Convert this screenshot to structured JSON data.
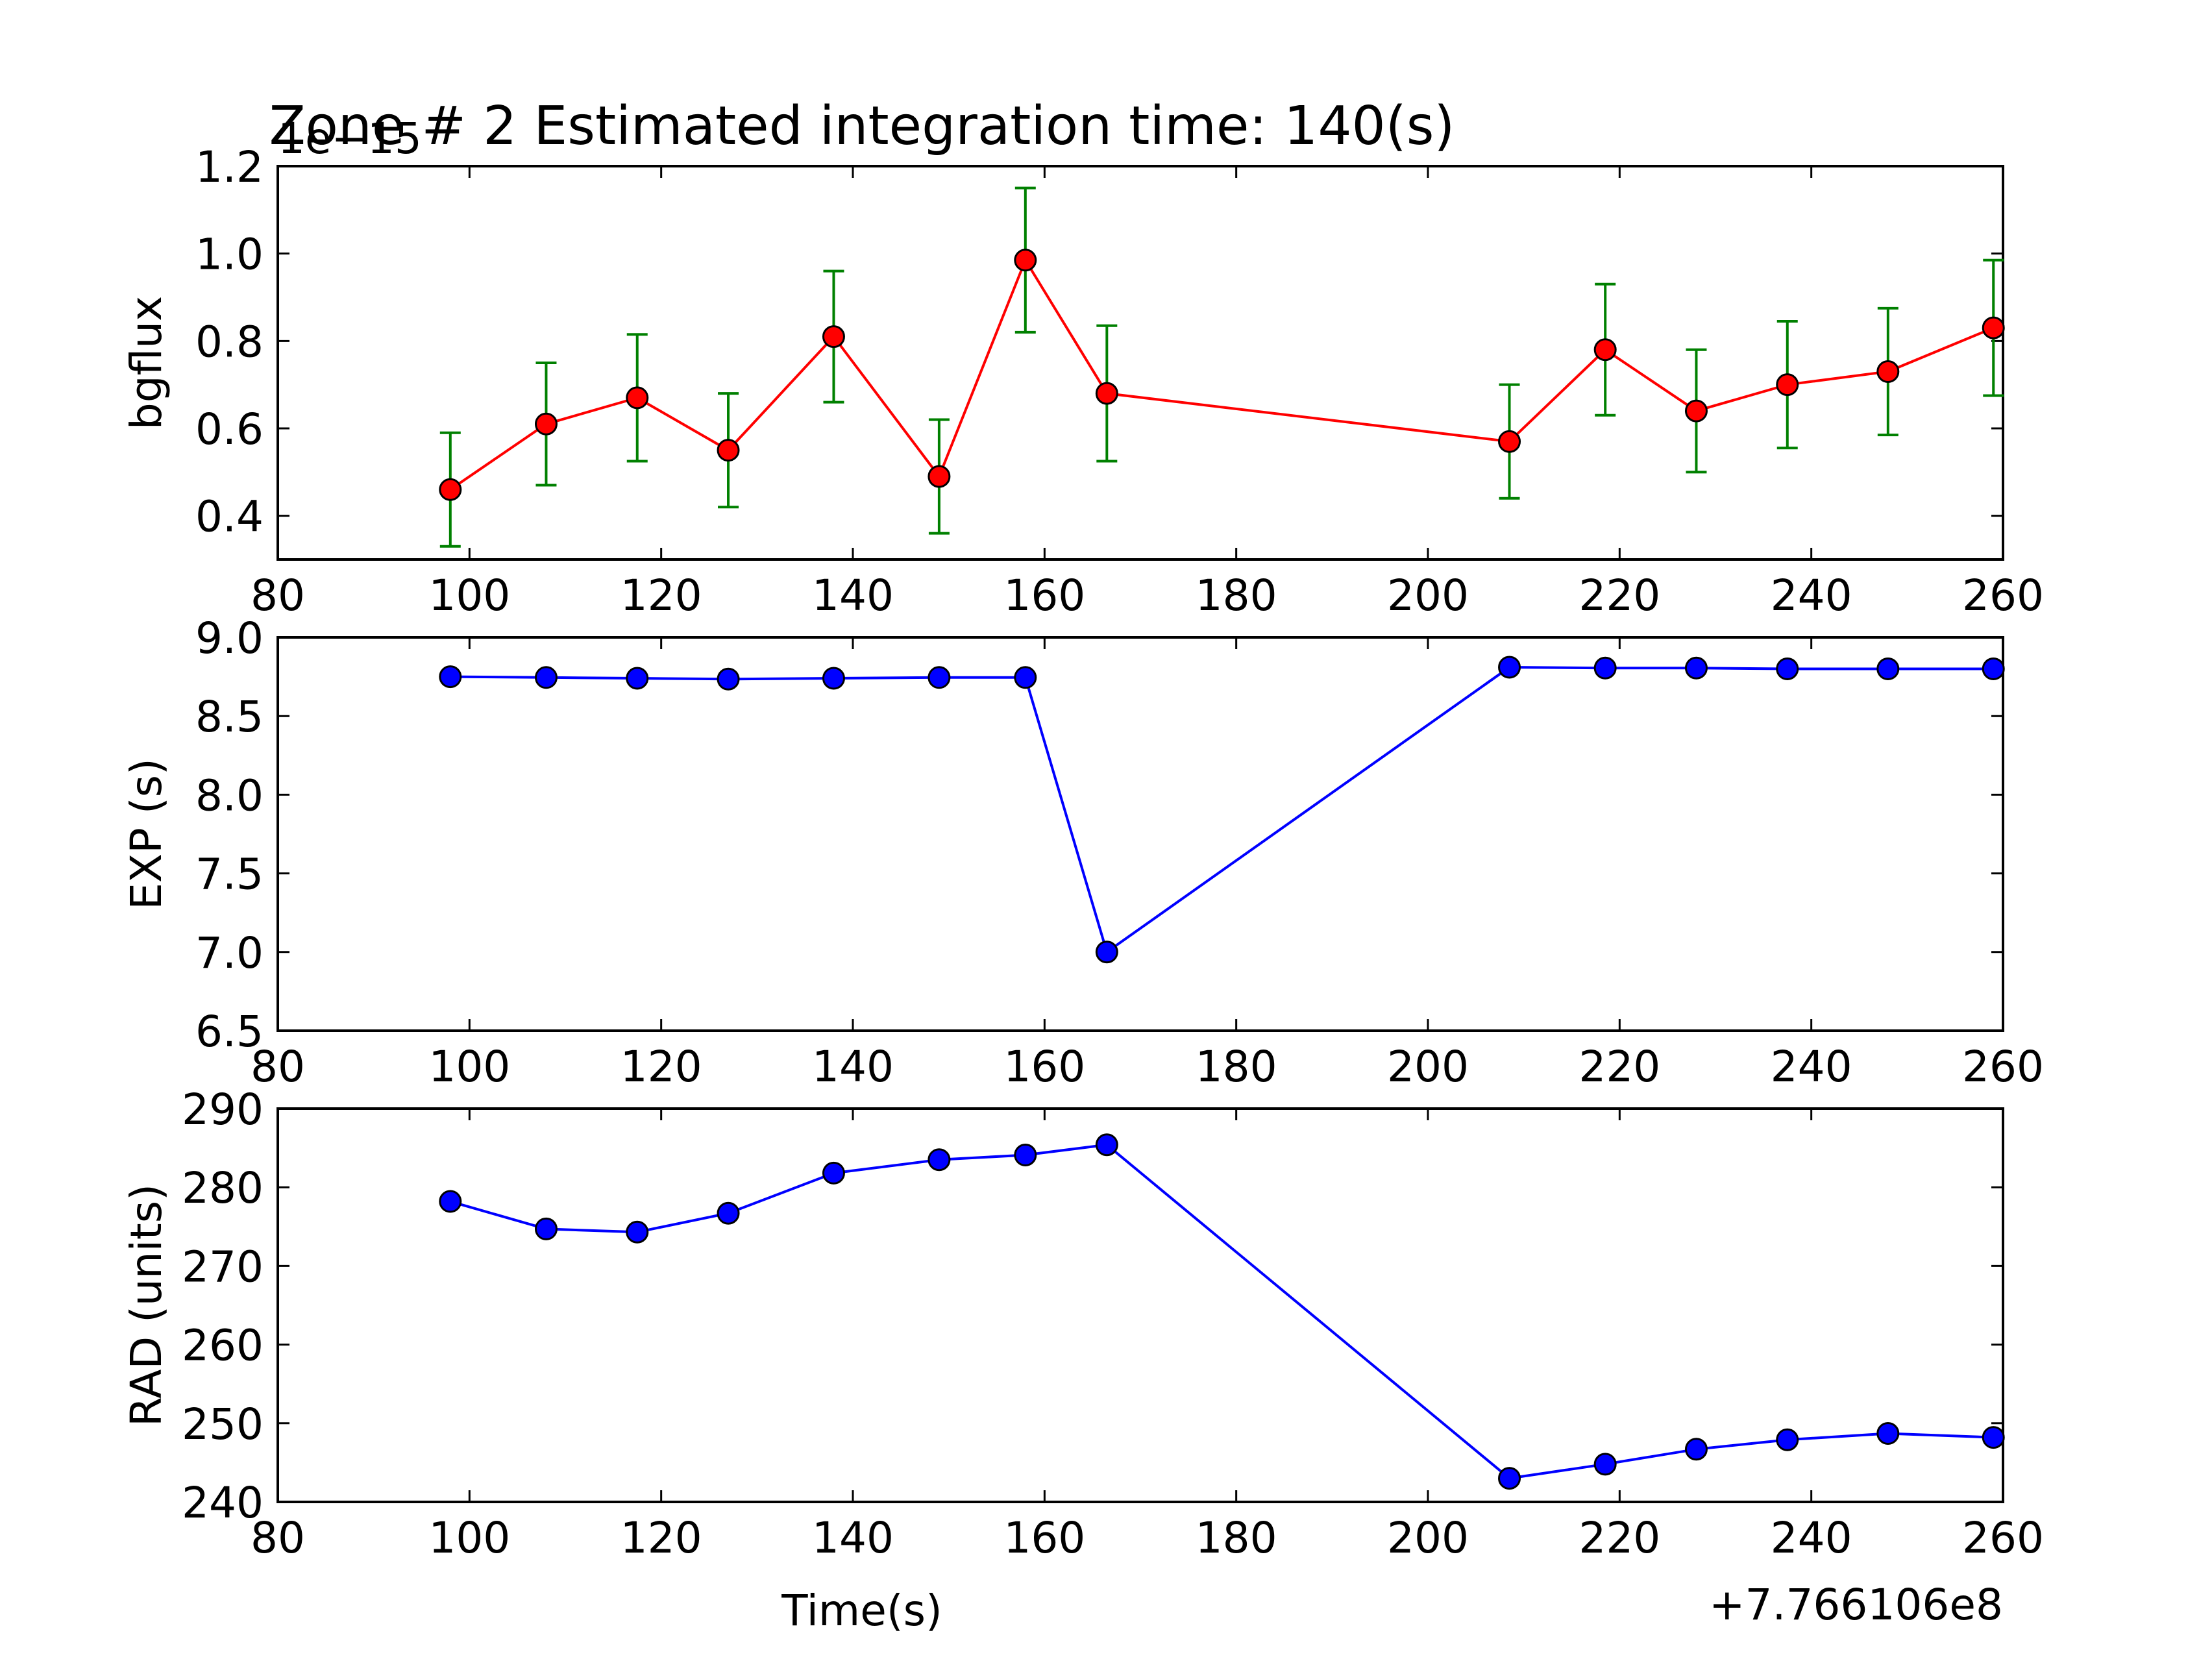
{
  "figure": {
    "title": "Zone # 2 Estimated integration time: 140(s)",
    "x_offset_label": "+7.766106e8",
    "colors": {
      "line_red": "#ff0000",
      "marker_red": "#ff0000",
      "errorbar_green": "#008000",
      "line_blue": "#0000ff",
      "marker_blue": "#0000ff"
    }
  },
  "chart_data": [
    {
      "type": "line",
      "ylabel": "bgflux",
      "y_multiplier_label": "1e−15",
      "xlabel": "",
      "xlim": [
        80,
        260
      ],
      "ylim": [
        0.3,
        1.2
      ],
      "xticks": [
        80,
        100,
        120,
        140,
        160,
        180,
        200,
        220,
        240,
        260
      ],
      "yticks": [
        0.4,
        0.6,
        0.8,
        1.0,
        1.2
      ],
      "ytick_labels": [
        "0.4",
        "0.6",
        "0.8",
        "1.0",
        "1.2"
      ],
      "error_bars": true,
      "series": [
        {
          "x": [
            98,
            108,
            117.5,
            127,
            138,
            149,
            158,
            166.5,
            208.5,
            218.5,
            228,
            237.5,
            248,
            259
          ],
          "values": [
            0.46,
            0.61,
            0.67,
            0.55,
            0.81,
            0.49,
            0.985,
            0.68,
            0.57,
            0.78,
            0.64,
            0.7,
            0.73,
            0.83
          ],
          "yerr": [
            0.13,
            0.14,
            0.145,
            0.13,
            0.15,
            0.13,
            0.165,
            0.155,
            0.13,
            0.15,
            0.14,
            0.145,
            0.145,
            0.155
          ]
        }
      ]
    },
    {
      "type": "line",
      "ylabel": "EXP (s)",
      "xlabel": "",
      "xlim": [
        80,
        260
      ],
      "ylim": [
        6.5,
        9.0
      ],
      "xticks": [
        80,
        100,
        120,
        140,
        160,
        180,
        200,
        220,
        240,
        260
      ],
      "yticks": [
        6.5,
        7.0,
        7.5,
        8.0,
        8.5,
        9.0
      ],
      "ytick_labels": [
        "6.5",
        "7.0",
        "7.5",
        "8.0",
        "8.5",
        "9.0"
      ],
      "series": [
        {
          "x": [
            98,
            108,
            117.5,
            127,
            138,
            149,
            158,
            166.5,
            208.5,
            218.5,
            228,
            237.5,
            248,
            259
          ],
          "values": [
            8.75,
            8.745,
            8.74,
            8.735,
            8.74,
            8.745,
            8.745,
            7.0,
            8.81,
            8.805,
            8.805,
            8.8,
            8.8,
            8.8
          ]
        }
      ]
    },
    {
      "type": "line",
      "ylabel": "RAD (units)",
      "xlabel": "Time(s)",
      "xlim": [
        80,
        260
      ],
      "ylim": [
        240,
        290
      ],
      "xticks": [
        80,
        100,
        120,
        140,
        160,
        180,
        200,
        220,
        240,
        260
      ],
      "yticks": [
        240,
        250,
        260,
        270,
        280,
        290
      ],
      "ytick_labels": [
        "240",
        "250",
        "260",
        "270",
        "280",
        "290"
      ],
      "series": [
        {
          "x": [
            98,
            108,
            117.5,
            127,
            138,
            149,
            158,
            166.5,
            208.5,
            218.5,
            228,
            237.5,
            248,
            259
          ],
          "values": [
            278.2,
            274.7,
            274.3,
            276.7,
            281.8,
            283.5,
            284.1,
            285.4,
            243.0,
            244.8,
            246.7,
            247.9,
            248.7,
            248.2
          ]
        }
      ]
    }
  ]
}
